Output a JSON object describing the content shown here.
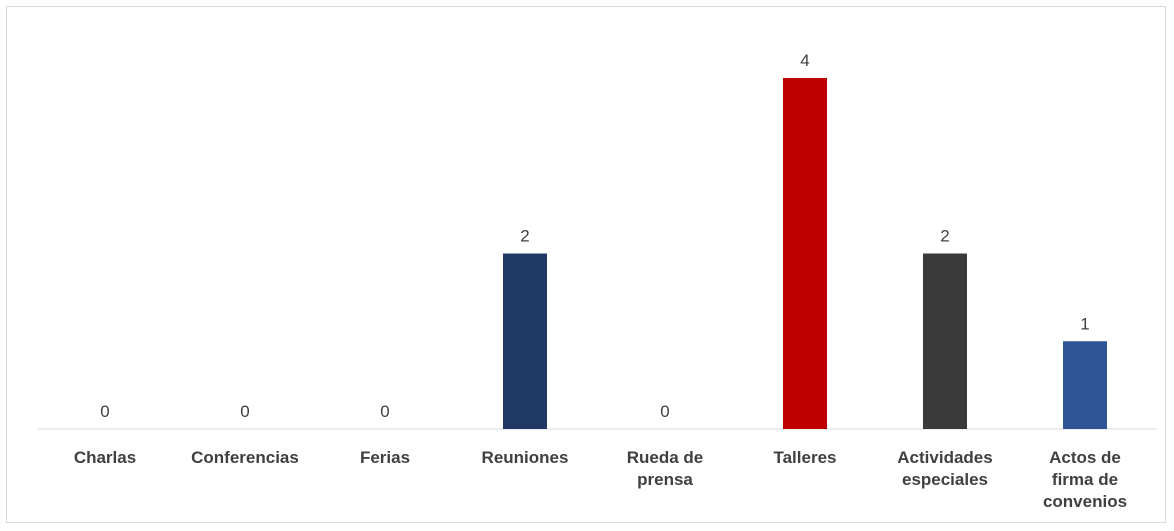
{
  "chart_data": {
    "type": "bar",
    "categories": [
      "Charlas",
      "Conferencias",
      "Ferias",
      "Reuniones",
      "Rueda de prensa",
      "Talleres",
      "Actividades especiales",
      "Actos de firma de convenios"
    ],
    "category_lines": [
      [
        "Charlas"
      ],
      [
        "Conferencias"
      ],
      [
        "Ferias"
      ],
      [
        "Reuniones"
      ],
      [
        "Rueda de",
        "prensa"
      ],
      [
        "Talleres"
      ],
      [
        "Actividades",
        "especiales"
      ],
      [
        "Actos de",
        "firma de",
        "convenios"
      ]
    ],
    "values": [
      0,
      0,
      0,
      2,
      0,
      4,
      2,
      1
    ],
    "bar_colors": [
      "#1f3864",
      "#1f3864",
      "#1f3864",
      "#1f3864",
      "#1f3864",
      "#c00000",
      "#3a3a3a",
      "#2f5597"
    ],
    "data_labels": true,
    "ylim": [
      0,
      4
    ],
    "grid": false,
    "legend": "none",
    "title": "",
    "xlabel": "",
    "ylabel": ""
  }
}
